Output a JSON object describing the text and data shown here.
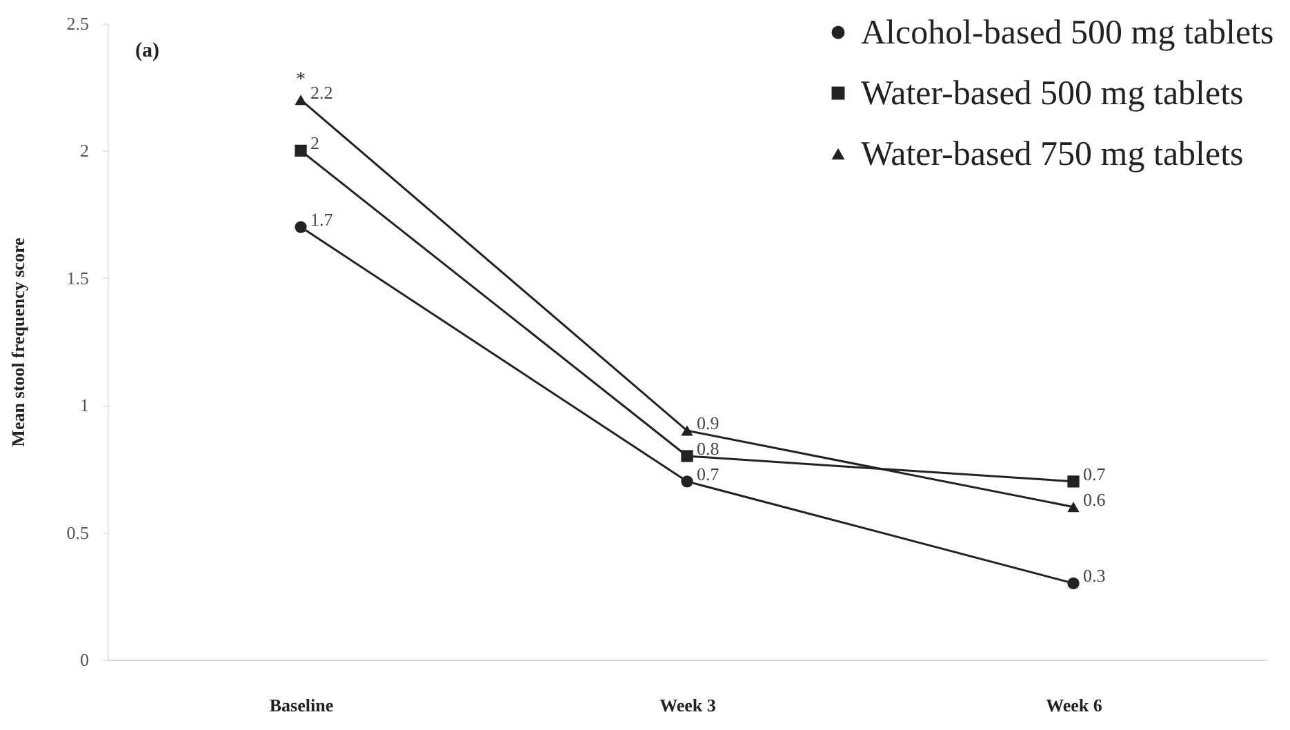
{
  "chart_data": {
    "type": "line",
    "categories": [
      "Baseline",
      "Week 3",
      "Week 6"
    ],
    "ylabel": "Mean stool frequency score",
    "ylim": [
      0,
      2.5
    ],
    "yticks": [
      0,
      0.5,
      1,
      1.5,
      2,
      2.5
    ],
    "series": [
      {
        "name": "Alcohol-based 500 mg tablets",
        "color": "#222222",
        "marker": "circle",
        "values": [
          1.7,
          0.7,
          0.3
        ]
      },
      {
        "name": "Water-based 500 mg tablets",
        "color": "#222222",
        "marker": "square",
        "values": [
          2,
          0.8,
          0.7
        ]
      },
      {
        "name": "Water-based 750 mg tablets",
        "color": "#222222",
        "marker": "triangle",
        "values": [
          2.2,
          0.9,
          0.6
        ]
      }
    ],
    "annotations": [
      "(a)",
      {
        "text": "*",
        "x": "Baseline",
        "y": 2.2
      }
    ],
    "data_labels": true,
    "legend": "top right",
    "line_style": "solid",
    "grid": false
  }
}
